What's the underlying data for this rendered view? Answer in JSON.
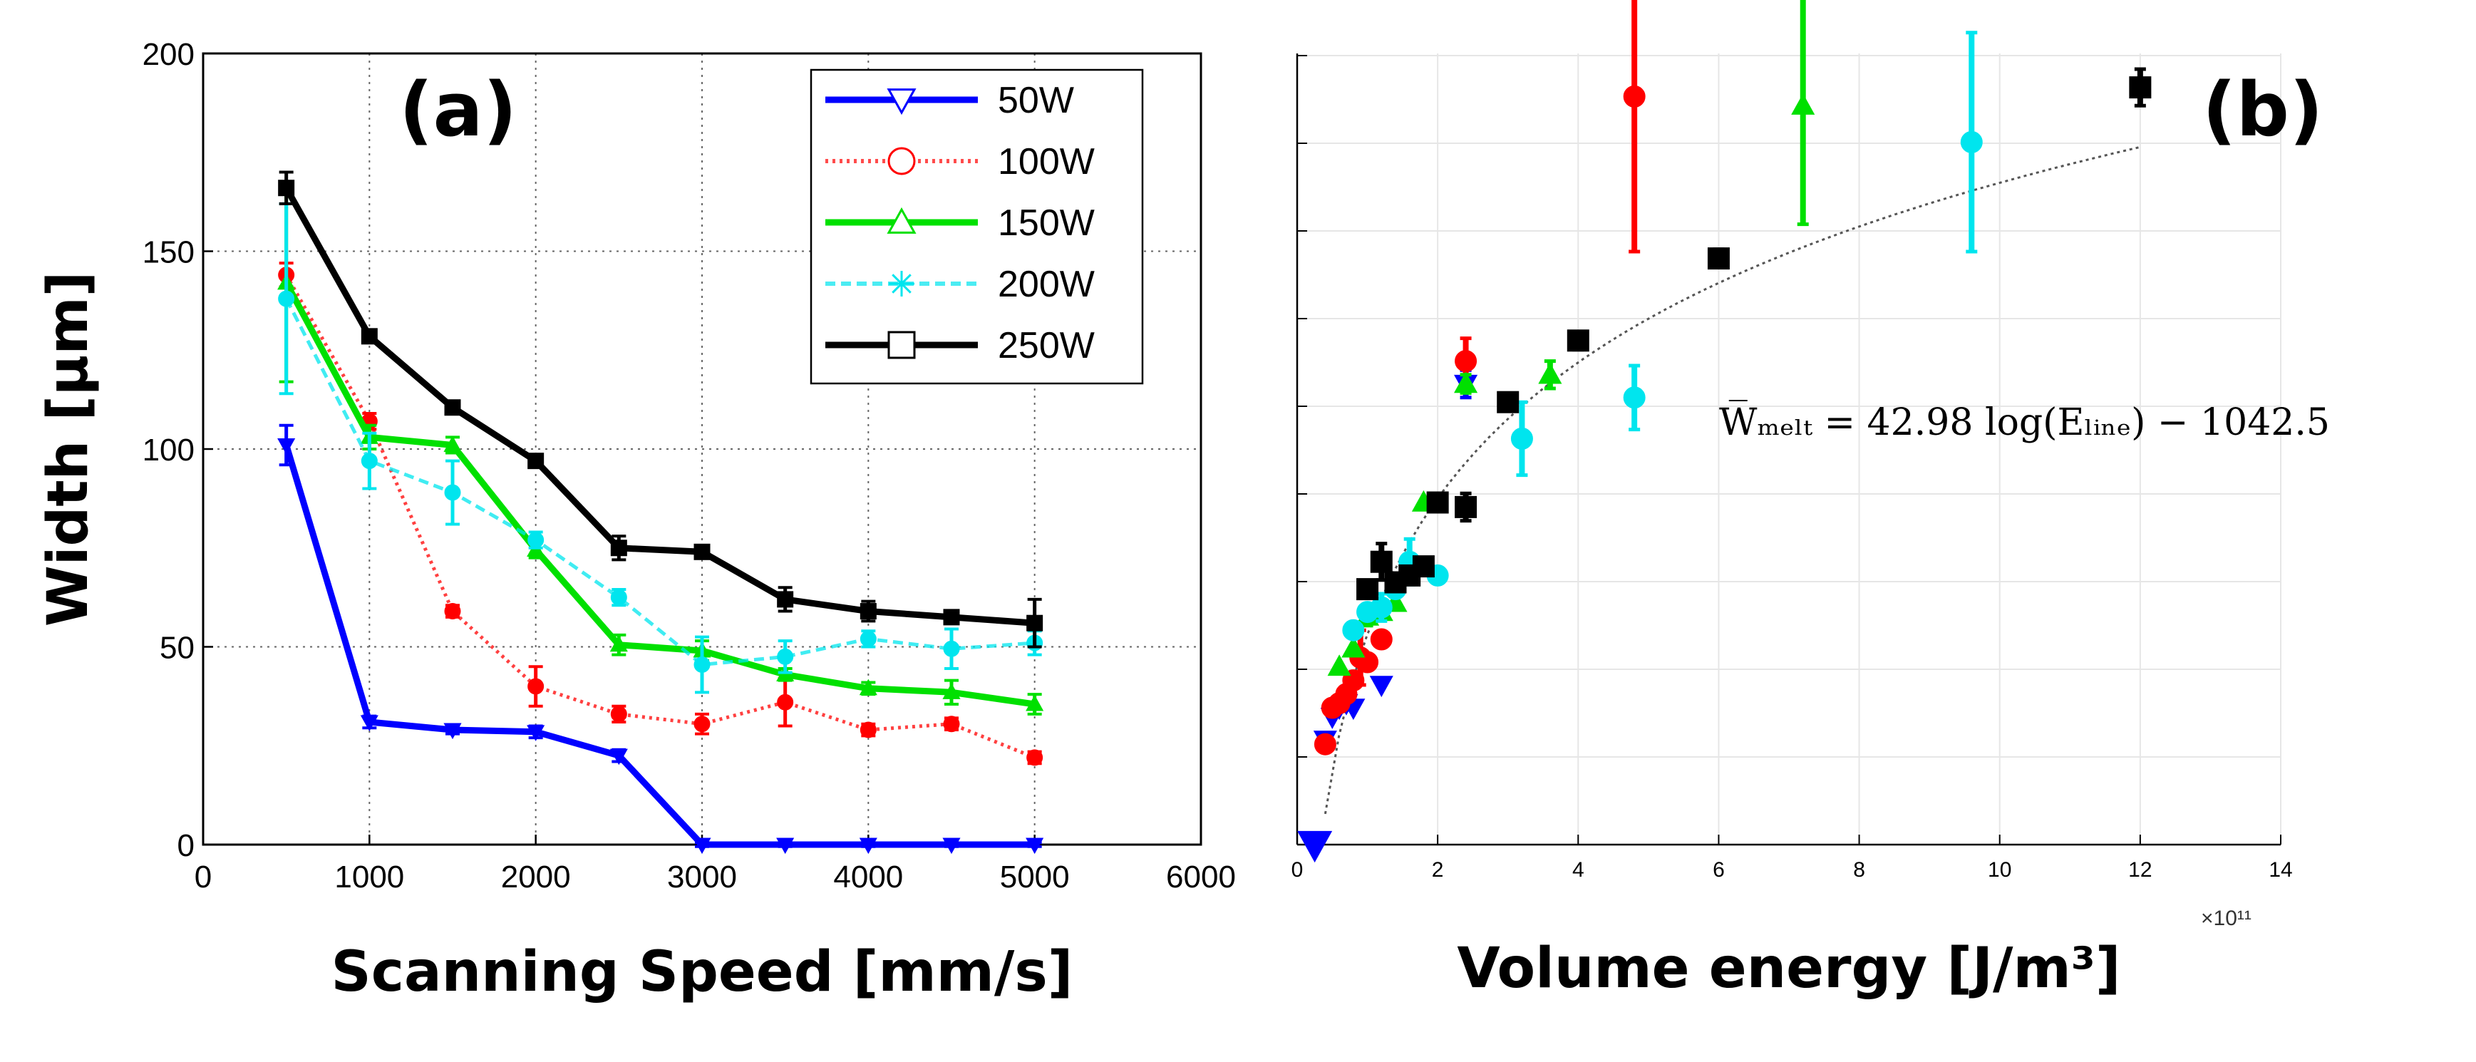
{
  "colors": {
    "50W": "#0000ff",
    "100W": "#ff0000",
    "150W": "#00e000",
    "200W": "#00e5ee",
    "250W": "#000000"
  },
  "chart_data": [
    {
      "type": "line",
      "panel_label": "(a)",
      "xlabel": "Scanning Speed [mm/s]",
      "ylabel": "Width [μm]",
      "xlim": [
        0,
        6000
      ],
      "ylim": [
        0,
        200
      ],
      "xticks": [
        "0",
        "1000",
        "2000",
        "3000",
        "4000",
        "5000",
        "6000"
      ],
      "yticks": [
        "0",
        "50",
        "100",
        "150",
        "200"
      ],
      "grid": "dotted",
      "legend_position": "top-right",
      "x": [
        500,
        1000,
        1500,
        2000,
        2500,
        3000,
        3500,
        4000,
        4500,
        5000
      ],
      "series": [
        {
          "name": "50W",
          "color": "#0000ff",
          "marker": "triangle-down",
          "style": "solid",
          "values": [
            101,
            31,
            29,
            28.5,
            22.5,
            0,
            0,
            0,
            0,
            0
          ],
          "errors": [
            5,
            1.5,
            1,
            1.5,
            1.5,
            0.5,
            0.5,
            0.5,
            0.5,
            0.5
          ]
        },
        {
          "name": "100W",
          "color": "#ff0000",
          "marker": "circle",
          "style": "dotted",
          "values": [
            144,
            107,
            59,
            40,
            33,
            30.5,
            36,
            29,
            30.5,
            22
          ],
          "errors": [
            3,
            2,
            1.5,
            5,
            2,
            2.5,
            6,
            1.5,
            1.5,
            1.5
          ]
        },
        {
          "name": "150W",
          "color": "#00e000",
          "marker": "triangle-up",
          "style": "solid",
          "values": [
            142,
            103,
            101,
            74.5,
            50.5,
            49,
            43,
            39.5,
            38.5,
            35.5
          ],
          "errors": [
            25,
            3,
            2,
            2,
            2.5,
            2.5,
            1.5,
            1.5,
            3,
            2.5
          ]
        },
        {
          "name": "200W",
          "color": "#00e5ee",
          "marker": "asterisk",
          "style": "dashed",
          "values": [
            138,
            97,
            89,
            77,
            62.5,
            45.5,
            47.5,
            52,
            49.5,
            51
          ],
          "errors": [
            24,
            7,
            8,
            2,
            2,
            7,
            4,
            2,
            5,
            3
          ]
        },
        {
          "name": "250W",
          "color": "#000000",
          "marker": "square",
          "style": "solid",
          "values": [
            166,
            128.5,
            110.5,
            97,
            75,
            74,
            62,
            59,
            57.5,
            56
          ],
          "errors": [
            4,
            1.5,
            1.5,
            1,
            3,
            1,
            3,
            2.5,
            1,
            6
          ]
        }
      ]
    },
    {
      "type": "scatter",
      "panel_label": "(b)",
      "xlabel": "Volume energy [J/m³]",
      "x_exponent_label": "×10¹¹",
      "xlim": [
        0,
        14
      ],
      "xticks": [
        "0",
        "2",
        "4",
        "6",
        "8",
        "10",
        "12",
        "14"
      ],
      "grid": "solid",
      "fit_equation": "W̅ₘₑₗₜ = 42.98 log(Eₗᵢₙₑ) − 1042.5",
      "series": [
        {
          "name": "50W",
          "color": "#0000ff",
          "marker": "triangle-down",
          "points": [
            [
              0.4,
              23
            ],
            [
              0.5,
              28
            ],
            [
              0.6,
              30
            ],
            [
              0.7,
              31
            ],
            [
              0.8,
              30
            ],
            [
              1.2,
              35
            ],
            [
              2.4,
              101
            ],
            [
              0.25,
              0
            ]
          ],
          "errors": [
            0,
            0,
            0,
            0,
            0,
            0,
            3,
            0
          ]
        },
        {
          "name": "100W",
          "color": "#ff0000",
          "marker": "circle",
          "points": [
            [
              0.4,
              22
            ],
            [
              0.5,
              30
            ],
            [
              0.6,
              31
            ],
            [
              0.7,
              33
            ],
            [
              0.8,
              36
            ],
            [
              0.9,
              41
            ],
            [
              1.0,
              40
            ],
            [
              1.2,
              45
            ],
            [
              2.4,
              106
            ],
            [
              4.8,
              164
            ]
          ],
          "errors": [
            0,
            0,
            0,
            0,
            0,
            6,
            0,
            0,
            5,
            34
          ]
        },
        {
          "name": "150W",
          "color": "#00e000",
          "marker": "triangle-up",
          "points": [
            [
              0.6,
              39
            ],
            [
              0.8,
              43
            ],
            [
              1.0,
              50
            ],
            [
              1.2,
              51
            ],
            [
              1.4,
              53
            ],
            [
              1.8,
              75
            ],
            [
              2.4,
              101
            ],
            [
              3.6,
              103
            ],
            [
              7.2,
              162
            ]
          ],
          "errors": [
            0,
            0,
            2,
            0,
            0,
            0,
            2,
            3,
            26
          ]
        },
        {
          "name": "200W",
          "color": "#00e5ee",
          "marker": "circle",
          "points": [
            [
              0.8,
              47
            ],
            [
              1.0,
              51
            ],
            [
              1.2,
              52
            ],
            [
              1.4,
              56
            ],
            [
              1.6,
              62
            ],
            [
              2.0,
              59
            ],
            [
              3.2,
              89
            ],
            [
              4.8,
              98
            ],
            [
              9.6,
              154
            ]
          ],
          "errors": [
            0,
            0,
            3,
            0,
            5,
            0,
            8,
            7,
            24
          ]
        },
        {
          "name": "250W",
          "color": "#000000",
          "marker": "square",
          "points": [
            [
              1.0,
              56
            ],
            [
              1.2,
              62
            ],
            [
              1.4,
              57.5
            ],
            [
              1.6,
              59
            ],
            [
              1.8,
              61
            ],
            [
              2.0,
              75
            ],
            [
              2.4,
              74
            ],
            [
              3.0,
              97
            ],
            [
              4.0,
              110.5
            ],
            [
              6.0,
              128.5
            ],
            [
              12.0,
              166
            ]
          ],
          "errors": [
            0,
            4,
            0,
            0,
            0,
            0,
            3,
            1,
            2,
            2,
            4
          ]
        }
      ]
    }
  ]
}
